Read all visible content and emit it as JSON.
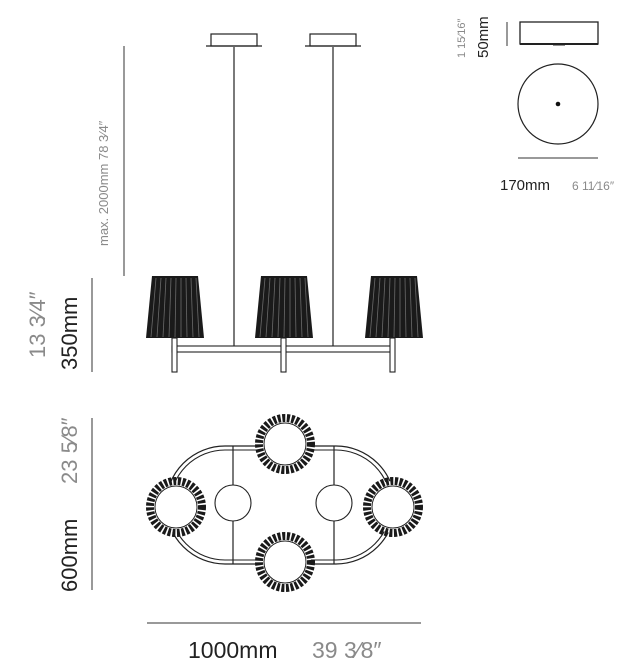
{
  "canopy": {
    "height_mm": "50mm",
    "height_in": "1 15⁄16″",
    "diameter_mm": "170mm",
    "diameter_in": "6 11⁄16″"
  },
  "suspension": {
    "max_length": "max. 2000mm  78 3⁄4″"
  },
  "body_height": {
    "mm": "350mm",
    "in": "13 3⁄4″"
  },
  "depth": {
    "mm": "600mm",
    "in": "23 5⁄8″"
  },
  "width": {
    "mm": "1000mm",
    "in": "39 3⁄8″"
  },
  "colors": {
    "line": "#222222",
    "dim_text_grey": "#8a8a8a",
    "shade": "#1a1a1a"
  }
}
